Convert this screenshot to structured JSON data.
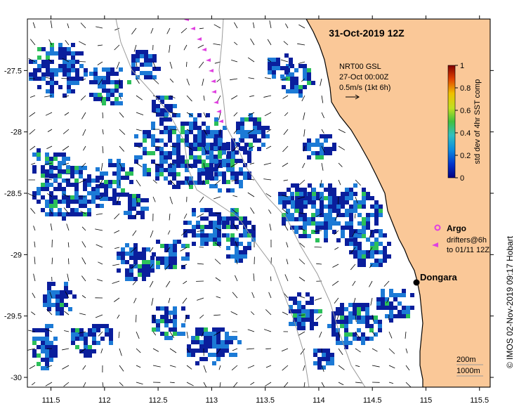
{
  "map": {
    "title": "31-Oct-2019 12Z",
    "credit": "© IMOS 02-Nov-2019 09:17 Hobart",
    "x_ticks": [
      "111.5",
      "112",
      "112.5",
      "113",
      "113.5",
      "114",
      "114.5",
      "115",
      "115.5"
    ],
    "y_ticks": [
      "-27.5",
      "-28",
      "-28.5",
      "-29",
      "-29.5",
      "-30"
    ],
    "extent": {
      "lon": [
        111.28,
        115.6
      ],
      "lat": [
        -27.08,
        -30.08
      ]
    },
    "current_legend": {
      "line1": "NRT00 GSL",
      "line2": "27-Oct 00:00Z",
      "line3": "0.5m/s (1kt 6h)"
    },
    "colorbar": {
      "label": "std dev of 4hr SST comp",
      "ticks": [
        "1",
        "0.8",
        "0.6",
        "0.4",
        "0.2",
        "0"
      ],
      "range": [
        0,
        1
      ]
    },
    "argo_label": "Argo",
    "drifter_label_1": "drifters@6h",
    "drifter_label_2": "to 01/11 12Z",
    "place": {
      "name": "Dongara",
      "lon": 114.93,
      "lat": -29.27
    },
    "isobath_labels": {
      "a": "200m",
      "b": "1000m"
    },
    "colors": {
      "land": "#FAC898",
      "no_data": "#ffffff",
      "low": "#0a1e9c",
      "mid": "#1c7ad6",
      "high": "#2cc05a",
      "argo": "#e040e0",
      "coast": "#000000"
    }
  }
}
